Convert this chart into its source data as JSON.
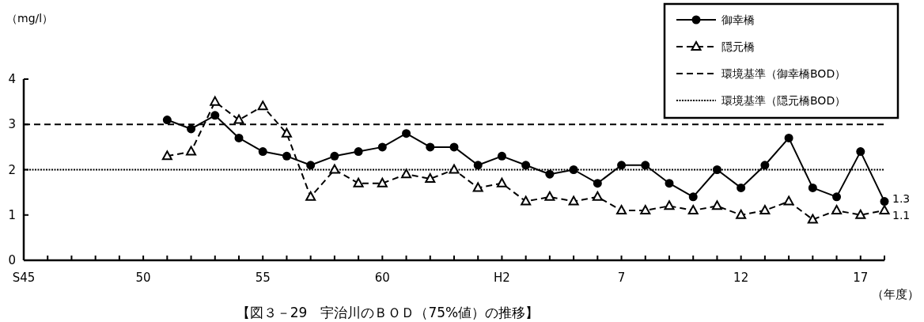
{
  "chart_data": {
    "type": "line",
    "title": "【図３－29　宇治川のＢＯＤ（75%値）の推移】",
    "xlabel": "（年度）",
    "ylabel": "（mg/l）",
    "categories": [
      "S45",
      null,
      null,
      null,
      null,
      "50",
      null,
      null,
      null,
      null,
      "55",
      null,
      null,
      null,
      null,
      "60",
      null,
      null,
      null,
      null,
      "H2",
      null,
      null,
      null,
      null,
      "7",
      null,
      null,
      null,
      null,
      "12",
      null,
      null,
      null,
      null,
      "17",
      null
    ],
    "series": [
      {
        "name": "御幸橋",
        "color": "#000000",
        "marker": "circle",
        "line_style": "solid",
        "values": [
          null,
          null,
          null,
          null,
          null,
          null,
          3.1,
          2.9,
          3.2,
          2.7,
          2.4,
          2.3,
          2.1,
          2.3,
          2.4,
          2.5,
          2.8,
          2.5,
          2.5,
          2.1,
          2.3,
          2.1,
          1.9,
          2.0,
          1.7,
          2.1,
          2.1,
          1.7,
          1.4,
          2.0,
          1.6,
          2.1,
          2.7,
          1.6,
          1.4,
          2.4,
          1.3
        ]
      },
      {
        "name": "隠元橋",
        "color": "#000000",
        "marker": "triangle",
        "line_style": "dashed",
        "values": [
          null,
          null,
          null,
          null,
          null,
          null,
          2.3,
          2.4,
          3.5,
          3.1,
          3.4,
          2.8,
          1.4,
          2.0,
          1.7,
          1.7,
          1.9,
          1.8,
          2.0,
          1.6,
          1.7,
          1.3,
          1.4,
          1.3,
          1.4,
          1.1,
          1.1,
          1.2,
          1.1,
          1.2,
          1.0,
          1.1,
          1.3,
          0.9,
          1.1,
          1.0,
          1.1
        ]
      }
    ],
    "ref_lines": [
      {
        "axis": "y",
        "value": 3,
        "label": "環境基準（御幸橋BOD）",
        "color": "#000000",
        "line_style": "dashed"
      },
      {
        "axis": "y",
        "value": 2,
        "label": "環境基準（隠元橋BOD）",
        "color": "#000000",
        "line_style": "dotted"
      }
    ],
    "annotations": [
      "1.3",
      "1.1"
    ],
    "ylim": [
      0,
      4
    ],
    "yticks": [
      0,
      1,
      2,
      3,
      4
    ],
    "legend": "top right"
  }
}
